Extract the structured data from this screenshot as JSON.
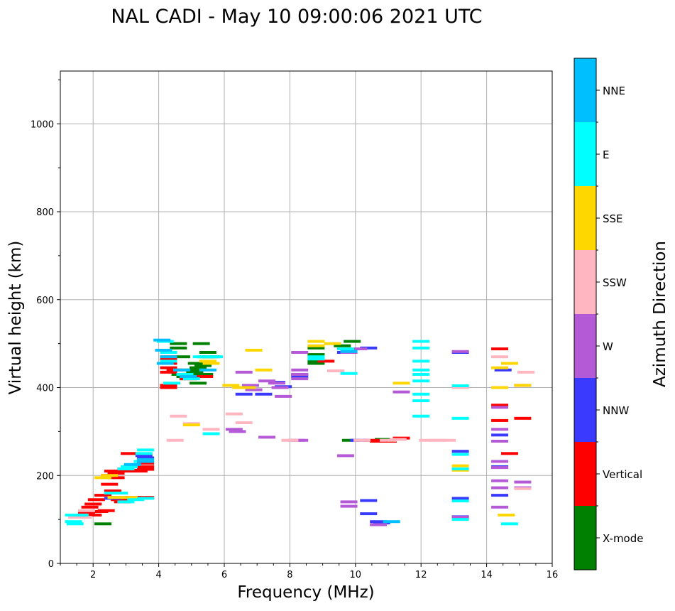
{
  "chart_data": {
    "type": "scatter",
    "title": "NAL CADI - May 10 09:00:06 2021 UTC",
    "xlabel": "Frequency (MHz)",
    "ylabel": "Virtual height (km)",
    "xlim": [
      1,
      16
    ],
    "ylim": [
      0,
      1120
    ],
    "xticks": [
      2,
      4,
      6,
      8,
      10,
      12,
      14,
      16
    ],
    "yticks": [
      0,
      200,
      400,
      600,
      800,
      1000
    ],
    "x_minor_step": 0.5,
    "y_minor_step": 100,
    "grid": true,
    "colorbar": {
      "label": "Azimuth Direction",
      "categories": [
        "X-mode",
        "Vertical",
        "NNW",
        "W",
        "SSW",
        "SSE",
        "E",
        "NNE"
      ],
      "colors": [
        "#008000",
        "#ff0000",
        "#3a3aff",
        "#b55ad6",
        "#ffb6c1",
        "#ffd700",
        "#00ffff",
        "#00bfff"
      ]
    },
    "series": [
      {
        "name": "X-mode",
        "points": [
          [
            4.6,
            500
          ],
          [
            4.6,
            490
          ],
          [
            4.7,
            470
          ],
          [
            4.65,
            430
          ],
          [
            4.9,
            420
          ],
          [
            5.1,
            435
          ],
          [
            5.2,
            445
          ],
          [
            5.4,
            430
          ],
          [
            5.35,
            450
          ],
          [
            5.5,
            480
          ],
          [
            5.45,
            470
          ],
          [
            5.2,
            410
          ],
          [
            5.3,
            500
          ],
          [
            8.8,
            490
          ],
          [
            8.8,
            475
          ],
          [
            8.8,
            460
          ],
          [
            8.8,
            455
          ],
          [
            9.6,
            495
          ],
          [
            9.9,
            505
          ],
          [
            9.85,
            280
          ],
          [
            10.9,
            278
          ],
          [
            10.85,
            282
          ],
          [
            2.3,
            90
          ],
          [
            5.0,
            430
          ],
          [
            5.05,
            440
          ],
          [
            4.8,
            425
          ],
          [
            5.15,
            455
          ],
          [
            5.6,
            470
          ]
        ]
      },
      {
        "name": "Vertical",
        "points": [
          [
            4.3,
            465
          ],
          [
            4.3,
            455
          ],
          [
            4.3,
            445
          ],
          [
            4.3,
            435
          ],
          [
            4.3,
            405
          ],
          [
            4.3,
            400
          ],
          [
            4.3,
            470
          ],
          [
            4.9,
            420
          ],
          [
            5.4,
            425
          ],
          [
            4.5,
            440
          ],
          [
            3.6,
            228
          ],
          [
            3.6,
            220
          ],
          [
            3.6,
            214
          ],
          [
            3.4,
            210
          ],
          [
            3.2,
            212
          ],
          [
            3.1,
            250
          ],
          [
            3.6,
            150
          ],
          [
            3.2,
            150
          ],
          [
            2.9,
            140
          ],
          [
            2.8,
            145
          ],
          [
            2.7,
            205
          ],
          [
            2.6,
            210
          ],
          [
            2.5,
            200
          ],
          [
            2.3,
            155
          ],
          [
            2.1,
            145
          ],
          [
            2.0,
            135
          ],
          [
            1.9,
            128
          ],
          [
            1.8,
            115
          ],
          [
            2.0,
            110
          ],
          [
            2.2,
            118
          ],
          [
            2.4,
            120
          ],
          [
            2.7,
            195
          ],
          [
            2.9,
            210
          ],
          [
            3.0,
            215
          ],
          [
            10.5,
            280
          ],
          [
            10.7,
            278
          ],
          [
            11.0,
            278
          ],
          [
            11.4,
            285
          ],
          [
            14.4,
            488
          ],
          [
            14.4,
            360
          ],
          [
            14.4,
            325
          ],
          [
            14.7,
            250
          ],
          [
            15.1,
            405
          ],
          [
            15.1,
            330
          ],
          [
            9.1,
            460
          ],
          [
            2.5,
            180
          ],
          [
            2.6,
            165
          ]
        ]
      },
      {
        "name": "NNW",
        "points": [
          [
            9.7,
            480
          ],
          [
            10.4,
            490
          ],
          [
            7.6,
            412
          ],
          [
            7.8,
            402
          ],
          [
            8.3,
            425
          ],
          [
            8.3,
            430
          ],
          [
            6.6,
            385
          ],
          [
            7.2,
            385
          ],
          [
            10.1,
            280
          ],
          [
            10.4,
            143
          ],
          [
            10.4,
            113
          ],
          [
            10.8,
            92
          ],
          [
            10.7,
            95
          ],
          [
            13.2,
            480
          ],
          [
            13.2,
            255
          ],
          [
            13.2,
            148
          ],
          [
            13.2,
            106
          ],
          [
            14.4,
            292
          ],
          [
            14.4,
            220
          ],
          [
            14.4,
            155
          ],
          [
            14.5,
            440
          ],
          [
            3.6,
            240
          ],
          [
            3.55,
            245
          ],
          [
            2.6,
            148
          ],
          [
            2.8,
            150
          ]
        ]
      },
      {
        "name": "W",
        "points": [
          [
            7.3,
            415
          ],
          [
            7.6,
            410
          ],
          [
            7.7,
            400
          ],
          [
            7.8,
            380
          ],
          [
            6.6,
            435
          ],
          [
            6.8,
            405
          ],
          [
            6.9,
            395
          ],
          [
            8.3,
            480
          ],
          [
            8.3,
            440
          ],
          [
            8.3,
            430
          ],
          [
            8.3,
            420
          ],
          [
            9.8,
            480
          ],
          [
            10.1,
            488
          ],
          [
            8.2,
            280
          ],
          [
            8.3,
            280
          ],
          [
            9.4,
            438
          ],
          [
            6.3,
            305
          ],
          [
            6.4,
            300
          ],
          [
            7.3,
            287
          ],
          [
            13.2,
            482
          ],
          [
            13.2,
            105
          ],
          [
            14.4,
            355
          ],
          [
            14.4,
            305
          ],
          [
            14.4,
            278
          ],
          [
            14.4,
            232
          ],
          [
            14.4,
            218
          ],
          [
            14.4,
            188
          ],
          [
            14.4,
            172
          ],
          [
            14.4,
            128
          ],
          [
            15.1,
            185
          ],
          [
            15.1,
            172
          ],
          [
            11.4,
            390
          ],
          [
            9.7,
            245
          ],
          [
            9.8,
            140
          ],
          [
            9.8,
            130
          ],
          [
            10.7,
            88
          ]
        ]
      },
      {
        "name": "SSW",
        "points": [
          [
            4.5,
            280
          ],
          [
            4.6,
            335
          ],
          [
            5.0,
            318
          ],
          [
            5.6,
            305
          ],
          [
            6.3,
            340
          ],
          [
            6.6,
            320
          ],
          [
            12.2,
            280
          ],
          [
            12.5,
            280
          ],
          [
            12.8,
            280
          ],
          [
            11.0,
            280
          ],
          [
            11.3,
            282
          ],
          [
            13.2,
            400
          ],
          [
            14.4,
            470
          ],
          [
            15.2,
            435
          ],
          [
            15.1,
            170
          ],
          [
            1.5,
            105
          ],
          [
            1.6,
            110
          ],
          [
            1.7,
            105
          ],
          [
            1.8,
            120
          ],
          [
            9.4,
            438
          ],
          [
            8.0,
            280
          ],
          [
            10.2,
            280
          ]
        ]
      },
      {
        "name": "SSE",
        "points": [
          [
            5.6,
            455
          ],
          [
            5.5,
            460
          ],
          [
            5.0,
            315
          ],
          [
            6.2,
            405
          ],
          [
            6.5,
            400
          ],
          [
            6.7,
            400
          ],
          [
            6.9,
            485
          ],
          [
            7.2,
            440
          ],
          [
            8.8,
            505
          ],
          [
            8.8,
            495
          ],
          [
            9.3,
            500
          ],
          [
            11.4,
            410
          ],
          [
            13.2,
            222
          ],
          [
            13.2,
            212
          ],
          [
            14.4,
            445
          ],
          [
            14.4,
            400
          ],
          [
            14.6,
            110
          ],
          [
            14.7,
            455
          ],
          [
            15.1,
            405
          ],
          [
            2.3,
            195
          ],
          [
            2.5,
            200
          ],
          [
            3.1,
            150
          ],
          [
            2.7,
            150
          ]
        ]
      },
      {
        "name": "E",
        "points": [
          [
            4.2,
            505
          ],
          [
            4.3,
            480
          ],
          [
            4.3,
            460
          ],
          [
            4.8,
            430
          ],
          [
            5.3,
            470
          ],
          [
            5.7,
            470
          ],
          [
            5.0,
            420
          ],
          [
            4.4,
            410
          ],
          [
            3.6,
            258
          ],
          [
            3.55,
            250
          ],
          [
            3.5,
            232
          ],
          [
            3.6,
            148
          ],
          [
            3.3,
            145
          ],
          [
            3.0,
            140
          ],
          [
            2.8,
            160
          ],
          [
            2.6,
            160
          ],
          [
            5.6,
            295
          ],
          [
            8.8,
            470
          ],
          [
            8.8,
            465
          ],
          [
            9.8,
            432
          ],
          [
            12.0,
            505
          ],
          [
            12.0,
            490
          ],
          [
            12.0,
            460
          ],
          [
            12.0,
            440
          ],
          [
            12.0,
            430
          ],
          [
            12.0,
            415
          ],
          [
            12.0,
            385
          ],
          [
            12.0,
            370
          ],
          [
            12.0,
            335
          ],
          [
            13.2,
            404
          ],
          [
            13.2,
            330
          ],
          [
            13.2,
            248
          ],
          [
            13.2,
            215
          ],
          [
            13.2,
            142
          ],
          [
            13.2,
            100
          ],
          [
            14.7,
            90
          ],
          [
            1.4,
            95
          ],
          [
            1.45,
            90
          ],
          [
            1.6,
            110
          ],
          [
            1.4,
            110
          ],
          [
            9.7,
            488
          ],
          [
            3.0,
            215
          ],
          [
            3.1,
            220
          ]
        ]
      },
      {
        "name": "NNE",
        "points": [
          [
            4.1,
            508
          ],
          [
            4.15,
            485
          ],
          [
            4.3,
            470
          ],
          [
            4.9,
            425
          ],
          [
            5.5,
            440
          ],
          [
            4.7,
            440
          ],
          [
            4.2,
            455
          ],
          [
            9.8,
            482
          ],
          [
            11.1,
            95
          ],
          [
            3.6,
            232
          ],
          [
            3.6,
            236
          ],
          [
            3.2,
            225
          ]
        ]
      }
    ]
  }
}
